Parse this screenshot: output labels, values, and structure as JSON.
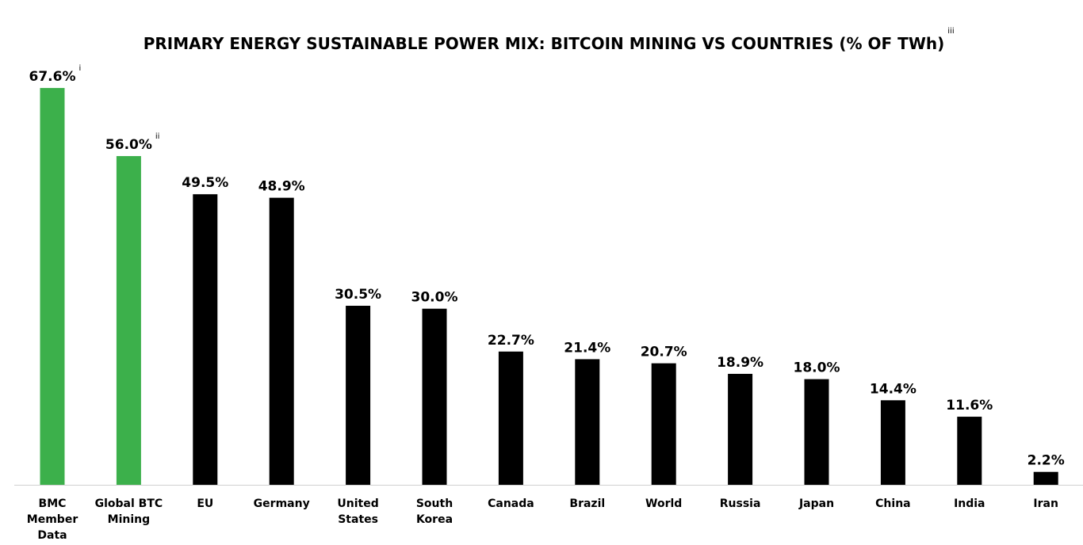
{
  "chart_data": {
    "type": "bar",
    "title": "PRIMARY ENERGY SUSTAINABLE POWER MIX: BITCOIN MINING VS COUNTRIES (% OF TWh)",
    "title_note": "iii",
    "xlabel": "",
    "ylabel": "",
    "ylim": [
      0,
      70
    ],
    "grid": false,
    "categories": [
      "BMC Member Data",
      "Global BTC Mining",
      "EU",
      "Germany",
      "United States",
      "South Korea",
      "Canada",
      "Brazil",
      "World",
      "Russia",
      "Japan",
      "China",
      "India",
      "Iran"
    ],
    "category_lines": [
      [
        "BMC",
        "Member",
        "Data"
      ],
      [
        "Global BTC",
        "Mining"
      ],
      [
        "EU"
      ],
      [
        "Germany"
      ],
      [
        "United",
        "States"
      ],
      [
        "South",
        "Korea"
      ],
      [
        "Canada"
      ],
      [
        "Brazil"
      ],
      [
        "World"
      ],
      [
        "Russia"
      ],
      [
        "Japan"
      ],
      [
        "China"
      ],
      [
        "India"
      ],
      [
        "Iran"
      ]
    ],
    "values": [
      67.6,
      56.0,
      49.5,
      48.9,
      30.5,
      30.0,
      22.7,
      21.4,
      20.7,
      18.9,
      18.0,
      14.4,
      11.6,
      2.2
    ],
    "data_labels": [
      "67.6%",
      "56.0%",
      "49.5%",
      "48.9%",
      "30.5%",
      "30.0%",
      "22.7%",
      "21.4%",
      "20.7%",
      "18.9%",
      "18.0%",
      "14.4%",
      "11.6%",
      "2.2%"
    ],
    "label_notes": [
      "i",
      "ii",
      "",
      "",
      "",
      "",
      "",
      "",
      "",
      "",
      "",
      "",
      "",
      ""
    ],
    "colors": [
      "#3cb04b",
      "#3cb04b",
      "#000000",
      "#000000",
      "#000000",
      "#000000",
      "#000000",
      "#000000",
      "#000000",
      "#000000",
      "#000000",
      "#000000",
      "#000000",
      "#000000"
    ]
  }
}
